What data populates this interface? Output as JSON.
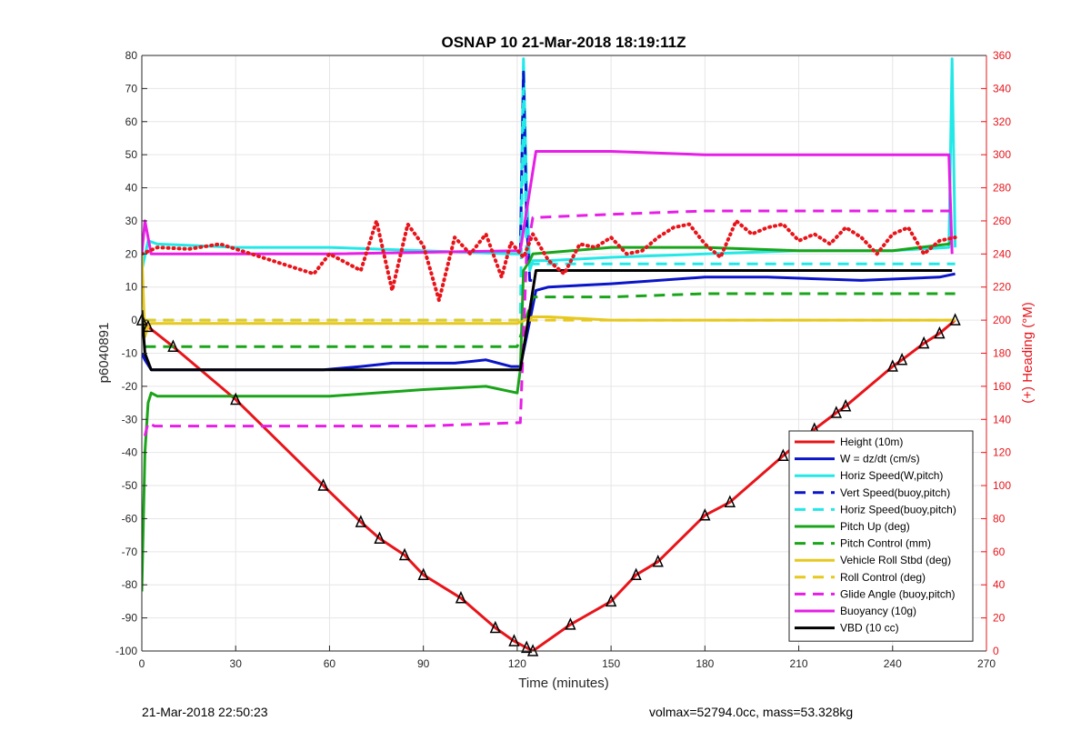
{
  "chart_data": {
    "type": "line",
    "title": "OSNAP 10 21-Mar-2018 18:19:11Z",
    "xlabel": "Time (minutes)",
    "ylabel_left": "p6040891",
    "ylabel_right": "(+) Heading (°M)",
    "xlim": [
      0,
      270
    ],
    "ylim_left": [
      -100,
      80
    ],
    "ylim_right": [
      0,
      360
    ],
    "xticks": [
      "0",
      "30",
      "60",
      "90",
      "120",
      "150",
      "180",
      "210",
      "240",
      "270"
    ],
    "yticks_left": [
      "80",
      "70",
      "60",
      "50",
      "40",
      "30",
      "20",
      "10",
      "0",
      "-10",
      "-20",
      "-30",
      "-40",
      "-50",
      "-60",
      "-70",
      "-80",
      "-90",
      "-100"
    ],
    "yticks_right": [
      "360",
      "340",
      "320",
      "300",
      "280",
      "260",
      "240",
      "220",
      "200",
      "180",
      "160",
      "140",
      "120",
      "100",
      "80",
      "60",
      "40",
      "20",
      "0"
    ],
    "grid": true,
    "legend_position": "bottom-right",
    "series": [
      {
        "name": "Height (10m)",
        "color": "#e8141a",
        "style": "solid",
        "x": [
          0,
          2,
          10,
          30,
          58,
          70,
          76,
          84,
          90,
          102,
          113,
          119,
          123,
          125,
          137,
          150,
          158,
          165,
          180,
          188,
          205,
          215,
          222,
          225,
          240,
          243,
          250,
          255,
          260
        ],
        "y": [
          0,
          -2,
          -8,
          -24,
          -50,
          -61,
          -66,
          -71,
          -77,
          -84,
          -93,
          -97,
          -99,
          -100,
          -92,
          -85,
          -77,
          -73,
          -59,
          -55,
          -41,
          -33,
          -28,
          -26,
          -14,
          -12,
          -7,
          -4,
          0
        ]
      },
      {
        "name": "W = dz/dt (cm/s)",
        "color": "#0a14c8",
        "style": "solid",
        "x": [
          0,
          1,
          3,
          10,
          30,
          58,
          70,
          80,
          90,
          100,
          110,
          118,
          121,
          123,
          126,
          130,
          150,
          180,
          200,
          230,
          255,
          260
        ],
        "y": [
          -10,
          -12,
          -15,
          -15,
          -15,
          -15,
          -14,
          -13,
          -13,
          -13,
          -12,
          -14,
          -14,
          -5,
          9,
          10,
          11,
          13,
          13,
          12,
          13,
          14
        ]
      },
      {
        "name": "Horiz Speed(W,pitch)",
        "color": "#22e8e8",
        "style": "solid",
        "x": [
          0,
          2,
          5,
          30,
          60,
          90,
          118,
          121,
          122,
          123,
          124,
          125,
          126,
          130,
          150,
          180,
          210,
          240,
          258,
          259,
          260
        ],
        "y": [
          15,
          24,
          23,
          22,
          22,
          21,
          20,
          20,
          79,
          40,
          15,
          18,
          18,
          18,
          19,
          20,
          21,
          21,
          22,
          79,
          22
        ]
      },
      {
        "name": "Vert Speed(buoy,pitch)",
        "color": "#0a14c8",
        "style": "dashed",
        "x": [
          121,
          122,
          123,
          124,
          125
        ],
        "y": [
          20,
          75,
          30,
          12,
          12
        ]
      },
      {
        "name": "Horiz Speed(buoy,pitch)",
        "color": "#22e8e8",
        "style": "dashed",
        "x": [
          1,
          120,
          121,
          122,
          123,
          124,
          260
        ],
        "y": [
          0,
          0,
          0,
          70,
          20,
          17,
          17
        ]
      },
      {
        "name": "Pitch Up (deg)",
        "color": "#1aa41a",
        "style": "solid",
        "x": [
          0,
          1,
          2,
          3,
          5,
          30,
          60,
          90,
          110,
          120,
          121,
          122,
          124,
          125,
          150,
          180,
          210,
          240,
          258,
          259
        ],
        "y": [
          -82,
          -40,
          -25,
          -22,
          -23,
          -23,
          -23,
          -21,
          -20,
          -22,
          -15,
          15,
          18,
          20,
          22,
          22,
          21,
          21,
          23,
          24
        ]
      },
      {
        "name": "Pitch Control (mm)",
        "color": "#1aa41a",
        "style": "dashed",
        "x": [
          1,
          120,
          125,
          150,
          180,
          210,
          240,
          260
        ],
        "y": [
          -8,
          -8,
          7,
          7,
          8,
          8,
          8,
          8
        ]
      },
      {
        "name": "Vehicle Roll Stbd (deg)",
        "color": "#e6c81e",
        "style": "solid",
        "x": [
          0,
          1,
          2,
          3,
          5,
          30,
          58,
          70,
          80,
          90,
          100,
          110,
          118,
          120,
          125,
          130,
          150,
          180,
          210,
          240,
          260
        ],
        "y": [
          20,
          -5,
          -2,
          -1,
          -1,
          -1,
          -1,
          -1,
          -1,
          -1,
          -1,
          -1,
          -1,
          -1,
          1,
          1,
          0,
          0,
          0,
          0,
          0
        ]
      },
      {
        "name": "Roll Control (deg)",
        "color": "#e6c81e",
        "style": "dashed",
        "x": [
          1,
          260
        ],
        "y": [
          0,
          0
        ]
      },
      {
        "name": "Glide Angle (buoy,pitch)",
        "color": "#e61ee6",
        "style": "dashed",
        "x": [
          1,
          2,
          4,
          30,
          60,
          90,
          120,
          121,
          123,
          125,
          150,
          180,
          210,
          240,
          260
        ],
        "y": [
          -35,
          -31,
          -32,
          -32,
          -32,
          -32,
          -31,
          -31,
          20,
          31,
          32,
          33,
          33,
          33,
          33
        ]
      },
      {
        "name": "Buoyancy (10g)",
        "color": "#e61ee6",
        "style": "solid",
        "x": [
          0,
          1,
          3,
          60,
          121,
          126,
          150,
          180,
          258,
          259
        ],
        "y": [
          20,
          30,
          20,
          20,
          21,
          51,
          51,
          50,
          50,
          20
        ]
      },
      {
        "name": "VBD (10 cc)",
        "color": "#000000",
        "style": "solid",
        "x": [
          0,
          1,
          3,
          10,
          120,
          121,
          126,
          150,
          258,
          259
        ],
        "y": [
          3,
          -10,
          -15,
          -15,
          -15,
          -15,
          15,
          15,
          15,
          15
        ]
      },
      {
        "name": "Heading",
        "axis": "right",
        "color": "#e8141a",
        "style": "dotted",
        "x": [
          0,
          5,
          15,
          25,
          35,
          45,
          55,
          60,
          70,
          75,
          80,
          85,
          90,
          95,
          100,
          105,
          110,
          115,
          118,
          122,
          125,
          130,
          135,
          140,
          145,
          150,
          155,
          160,
          165,
          170,
          175,
          180,
          185,
          190,
          195,
          200,
          205,
          210,
          215,
          220,
          225,
          230,
          235,
          240,
          245,
          250,
          255,
          260
        ],
        "y": [
          240,
          244,
          243,
          246,
          240,
          234,
          228,
          240,
          230,
          260,
          218,
          258,
          245,
          212,
          250,
          240,
          252,
          226,
          247,
          238,
          252,
          236,
          228,
          246,
          244,
          250,
          240,
          242,
          250,
          256,
          258,
          246,
          238,
          260,
          252,
          256,
          258,
          248,
          252,
          246,
          256,
          250,
          240,
          252,
          256,
          240,
          248,
          250
        ]
      }
    ]
  },
  "footer": {
    "left": "21-Mar-2018 22:50:23",
    "right": "volmax=52794.0cc, mass=53.328kg"
  }
}
